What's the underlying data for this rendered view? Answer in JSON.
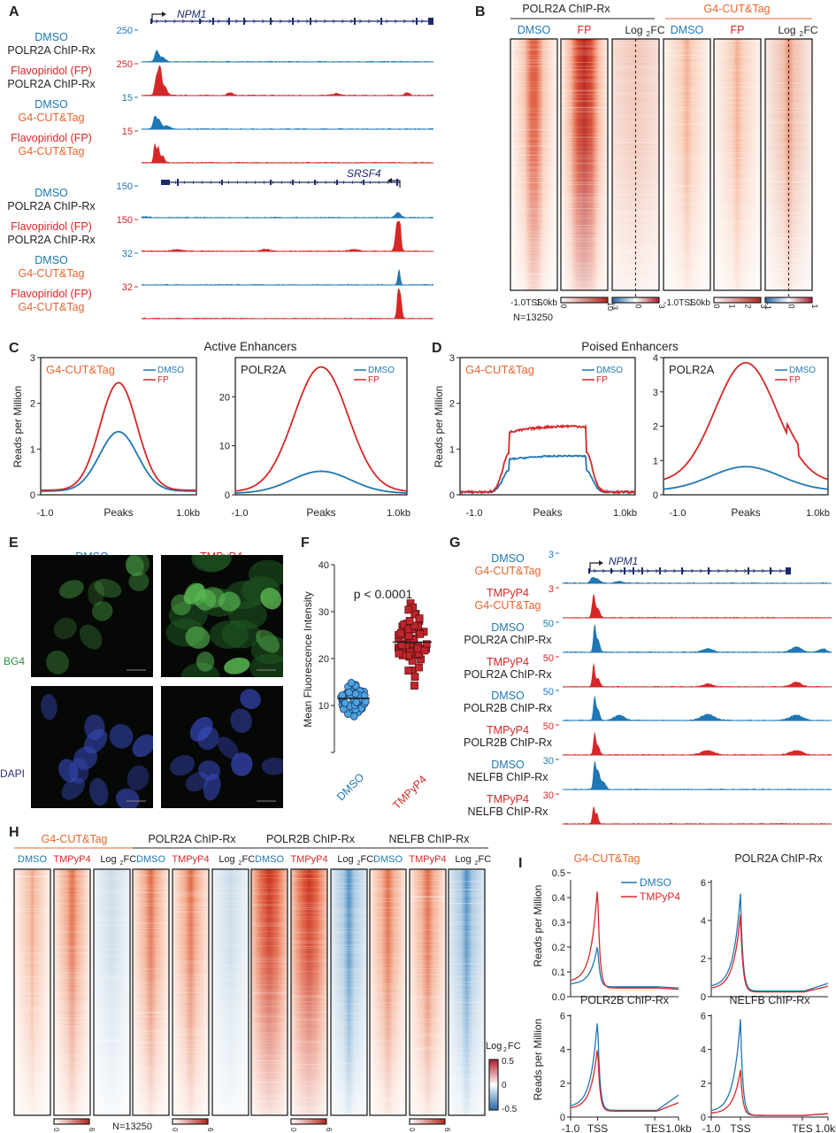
{
  "colors": {
    "dmso": "#1f77b4",
    "treat": "#d62728",
    "g4": "#e8642c",
    "dark": "#222222",
    "gene": "#1b2a6b"
  },
  "panelA": {
    "letter": "A",
    "genes": [
      "NPM1",
      "SRSF4"
    ],
    "tracks": [
      {
        "l1": "DMSO",
        "l2": "POLR2A ChIP-Rx",
        "scale": "250",
        "c": "dmso"
      },
      {
        "l1": "Flavopiridol (FP)",
        "l2": "POLR2A ChIP-Rx",
        "scale": "250",
        "c": "treat"
      },
      {
        "l1": "DMSO",
        "l2": "G4-CUT&Tag",
        "scale": "15",
        "c": "dmso"
      },
      {
        "l1": "Flavopiridol (FP)",
        "l2": "G4-CUT&Tag",
        "scale": "15",
        "c": "treat"
      },
      {
        "l1": "DMSO",
        "l2": "POLR2A ChIP-Rx",
        "scale": "150",
        "c": "dmso"
      },
      {
        "l1": "Flavopiridol (FP)",
        "l2": "POLR2A ChIP-Rx",
        "scale": "150",
        "c": "treat"
      },
      {
        "l1": "DMSO",
        "l2": "G4-CUT&Tag",
        "scale": "32",
        "c": "dmso"
      },
      {
        "l1": "Flavopiridol (FP)",
        "l2": "G4-CUT&Tag",
        "scale": "32",
        "c": "treat"
      }
    ]
  },
  "panelB": {
    "letter": "B",
    "group1": "POLR2A ChIP-Rx",
    "group2": "G4-CUT&Tag",
    "cols": [
      "DMSO",
      "FP",
      "Log2FC",
      "DMSO",
      "FP",
      "Log2FC"
    ],
    "axis": "-1.0  TSS 1.0kb",
    "n": "N=13250",
    "scales": [
      [
        "0",
        "10"
      ],
      [
        "-3",
        "0",
        "3"
      ],
      [
        "0",
        "1",
        "2",
        "3"
      ],
      [
        "-1",
        "0",
        "1"
      ]
    ]
  },
  "panelC": {
    "letter": "C",
    "title": "Active Enhancers",
    "ylabel": "Reads per Million",
    "xlabel": "Peaks",
    "xticks": [
      "-1.0",
      "1.0kb"
    ],
    "plots": [
      {
        "name": "G4-CUT&Tag",
        "yticks": [
          "0",
          "1",
          "2",
          "3"
        ]
      },
      {
        "name": "POLR2A",
        "yticks": [
          "0",
          "10",
          "20"
        ]
      }
    ]
  },
  "panelD": {
    "letter": "D",
    "title": "Poised Enhancers",
    "ylabel": "Reads per Million",
    "xlabel": "Peaks",
    "xticks": [
      "-1.0",
      "1.0kb"
    ],
    "plots": [
      {
        "name": "G4-CUT&Tag",
        "yticks": [
          "0",
          "1",
          "2",
          "3"
        ]
      },
      {
        "name": "POLR2A",
        "yticks": [
          "0",
          "1",
          "2",
          "3",
          "4"
        ]
      }
    ]
  },
  "legend": {
    "dmso": "DMSO",
    "fp": "FP",
    "tmpyp4": "TMPyP4"
  },
  "panelE": {
    "letter": "E",
    "cols": [
      "DMSO",
      "TMPyP4"
    ],
    "rows": [
      "BG4",
      "DAPI"
    ]
  },
  "panelF": {
    "letter": "F",
    "ylabel": "Mean Fluorescence Intensity",
    "p": "p < 0.0001",
    "yticks": [
      "10",
      "20",
      "30",
      "40"
    ],
    "groups": [
      "DMSO",
      "TMPyP4"
    ]
  },
  "panelG": {
    "letter": "G",
    "gene": "NPM1",
    "tracks": [
      {
        "l1": "DMSO",
        "l2": "G4-CUT&Tag",
        "scale": "3",
        "c": "dmso"
      },
      {
        "l1": "TMPyP4",
        "l2": "G4-CUT&Tag",
        "scale": "3",
        "c": "treat"
      },
      {
        "l1": "DMSO",
        "l2": "POLR2A ChIP-Rx",
        "scale": "50",
        "c": "dmso"
      },
      {
        "l1": "TMPyP4",
        "l2": "POLR2A ChIP-Rx",
        "scale": "50",
        "c": "treat"
      },
      {
        "l1": "DMSO",
        "l2": "POLR2B ChIP-Rx",
        "scale": "50",
        "c": "dmso"
      },
      {
        "l1": "TMPyP4",
        "l2": "POLR2B ChIP-Rx",
        "scale": "50",
        "c": "treat"
      },
      {
        "l1": "DMSO",
        "l2": "NELFB ChIP-Rx",
        "scale": "30",
        "c": "dmso"
      },
      {
        "l1": "TMPyP4",
        "l2": "NELFB ChIP-Rx",
        "scale": "30",
        "c": "treat"
      }
    ]
  },
  "panelH": {
    "letter": "H",
    "groups": [
      "G4-CUT&Tag",
      "POLR2A ChIP-Rx",
      "POLR2B ChIP-Rx",
      "NELFB ChIP-Rx"
    ],
    "cols": [
      "DMSO",
      "TMPyP4",
      "Log2FC"
    ],
    "n": "N=13250",
    "fc_label": "Log2FC",
    "fc_ticks": [
      "0.5",
      "0",
      "-0.5"
    ],
    "scale_ticks": [
      "0",
      "6"
    ]
  },
  "panelI": {
    "letter": "I",
    "ylabel": "Reads per Million",
    "xticks": [
      "-1.0",
      "TSS",
      "TES",
      "1.0kb"
    ],
    "plots": [
      {
        "name": "G4-CUT&Tag",
        "yticks": [
          "0.0",
          "0.1",
          "0.2",
          "0.3",
          "0.4",
          "0.5"
        ]
      },
      {
        "name": "POLR2A ChIP-Rx",
        "yticks": [
          "0",
          "2",
          "4",
          "6"
        ]
      },
      {
        "name": "POLR2B ChIP-Rx",
        "yticks": [
          "0",
          "2",
          "4",
          "6"
        ]
      },
      {
        "name": "NELFB ChIP-Rx",
        "yticks": [
          "0",
          "2",
          "4",
          "6"
        ]
      }
    ]
  }
}
